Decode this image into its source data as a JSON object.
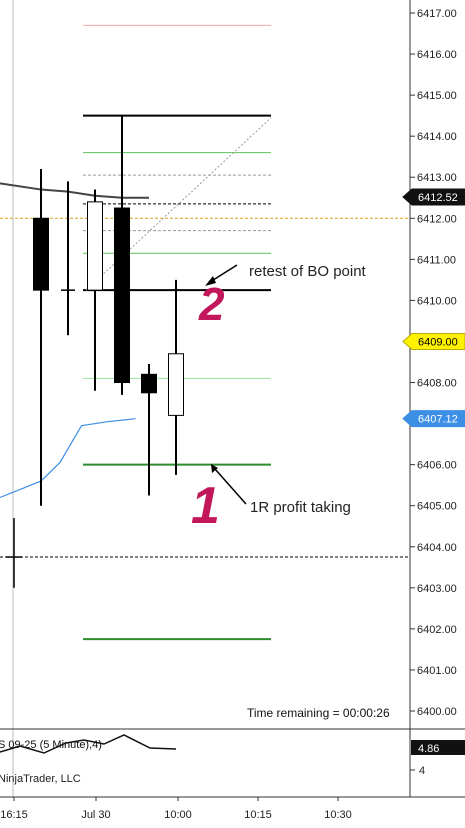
{
  "chart_data": {
    "type": "candlestick",
    "y_axis": {
      "ticks": [
        "6417.00",
        "6416.00",
        "6415.00",
        "6414.00",
        "6413.00",
        "6412.00",
        "6411.00",
        "6410.00",
        "6408.00",
        "6406.00",
        "6405.00",
        "6404.00",
        "6403.00",
        "6402.00",
        "6401.00",
        "6400.00"
      ],
      "ylim": [
        6399.7,
        6417.4
      ]
    },
    "x_axis": {
      "ticks": [
        "16:15",
        "Jul 30",
        "10:00",
        "10:15",
        "10:30"
      ]
    },
    "price_markers": [
      {
        "label": "6412.52",
        "value": 6412.52,
        "color": "#111111",
        "text_color": "#ffffff"
      },
      {
        "label": "6409.00",
        "value": 6409.0,
        "color": "#fff200",
        "text_color": "#000000"
      },
      {
        "label": "6407.12",
        "value": 6407.12,
        "color": "#3d8fe6",
        "text_color": "#ffffff"
      }
    ],
    "candles": [
      {
        "open": 6412.0,
        "high": 6413.2,
        "low": 6405.0,
        "close": 6410.25,
        "color": "black"
      },
      {
        "open": 6410.25,
        "high": 6412.9,
        "low": 6409.15,
        "close": 6410.25,
        "color": "doji"
      },
      {
        "open": 6410.25,
        "high": 6412.7,
        "low": 6407.8,
        "close": 6412.4,
        "color": "white"
      },
      {
        "open": 6412.25,
        "high": 6414.5,
        "low": 6407.7,
        "close": 6408.0,
        "color": "black"
      },
      {
        "open": 6408.2,
        "high": 6408.45,
        "low": 6405.25,
        "close": 6407.75,
        "color": "black"
      },
      {
        "open": 6407.2,
        "high": 6410.5,
        "low": 6405.75,
        "close": 6408.7,
        "color": "white"
      }
    ],
    "earlier_bar": {
      "high": 6404.7,
      "low": 6403.0,
      "close": 6403.75
    },
    "moving_averages": [
      {
        "color": "#444444",
        "points": [
          [
            0,
            6412.7
          ],
          [
            1,
            6412.65
          ],
          [
            2,
            6412.55
          ],
          [
            3,
            6412.5
          ],
          [
            4,
            6412.5
          ]
        ]
      },
      {
        "color": "#3d8fe6",
        "points": [
          [
            -1,
            6405.2
          ],
          [
            0,
            6405.6
          ],
          [
            0.7,
            6406.05
          ],
          [
            1.5,
            6406.95
          ],
          [
            2.5,
            6407.05
          ],
          [
            3.5,
            6407.12
          ]
        ]
      }
    ],
    "horizontal_levels": [
      {
        "value": 6416.7,
        "color": "#f2a7a7",
        "width": 1,
        "dash": "",
        "span": "trade"
      },
      {
        "value": 6414.5,
        "color": "#000000",
        "width": 2,
        "dash": "",
        "span": "trade"
      },
      {
        "value": 6413.6,
        "color": "#5cc15c",
        "width": 1,
        "dash": "",
        "span": "trade"
      },
      {
        "value": 6413.05,
        "color": "#9a9a9a",
        "width": 1,
        "dash": "3,2",
        "span": "trade"
      },
      {
        "value": 6412.35,
        "color": "#000000",
        "width": 1,
        "dash": "3,2",
        "span": "trade"
      },
      {
        "value": 6411.7,
        "color": "#9a9a9a",
        "width": 1,
        "dash": "3,2",
        "span": "trade"
      },
      {
        "value": 6411.15,
        "color": "#5cc15c",
        "width": 1,
        "dash": "",
        "span": "trade"
      },
      {
        "value": 6410.25,
        "color": "#000000",
        "width": 2,
        "dash": "",
        "span": "trade"
      },
      {
        "value": 6408.1,
        "color": "#9be29b",
        "width": 1,
        "dash": "",
        "span": "trade"
      },
      {
        "value": 6406.0,
        "color": "#2e8b2e",
        "width": 2,
        "dash": "",
        "span": "trade"
      },
      {
        "value": 6401.75,
        "color": "#2e8b2e",
        "width": 2,
        "dash": "",
        "span": "trade"
      },
      {
        "value": 6412.0,
        "color": "#d9a21b",
        "width": 1,
        "dash": "3,2",
        "span": "full"
      },
      {
        "value": 6403.75,
        "color": "#000000",
        "width": 1,
        "dash": "3,2",
        "span": "full"
      }
    ],
    "annotations": {
      "retest_text": "retest of BO point",
      "profit_text": "1R profit taking",
      "handwritten_2": "2",
      "handwritten_1": "1",
      "time_remaining": "Time remaining = 00:00:26"
    },
    "indicator_panel": {
      "title": "S 09-25 (5 Minute),4)",
      "footer": "NinjaTrader, LLC",
      "value_label": "4.86",
      "axis_label": "4"
    }
  }
}
